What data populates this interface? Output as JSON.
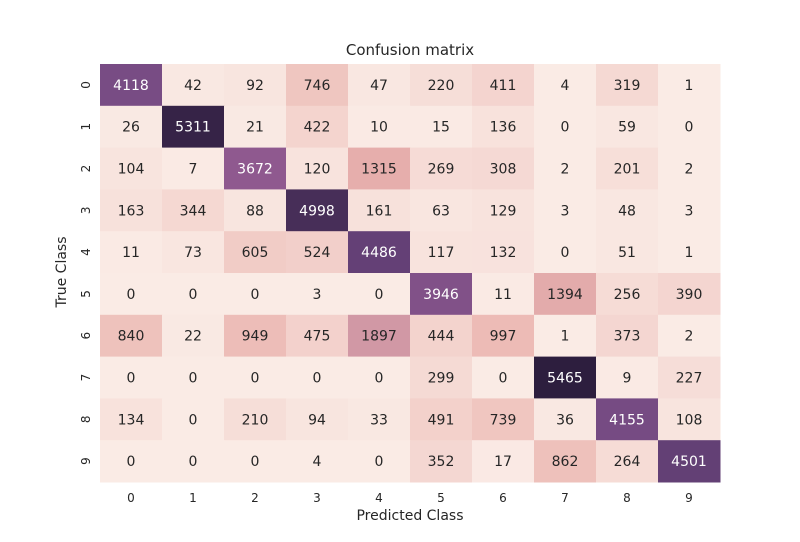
{
  "chart_data": {
    "type": "heatmap",
    "title": "Confusion matrix",
    "xlabel": "Predicted Class",
    "ylabel": "True Class",
    "x_categories": [
      "0",
      "1",
      "2",
      "3",
      "4",
      "5",
      "6",
      "7",
      "8",
      "9"
    ],
    "y_categories": [
      "0",
      "1",
      "2",
      "3",
      "4",
      "5",
      "6",
      "7",
      "8",
      "9"
    ],
    "values": [
      [
        4118,
        42,
        92,
        746,
        47,
        220,
        411,
        4,
        319,
        1
      ],
      [
        26,
        5311,
        21,
        422,
        10,
        15,
        136,
        0,
        59,
        0
      ],
      [
        104,
        7,
        3672,
        120,
        1315,
        269,
        308,
        2,
        201,
        2
      ],
      [
        163,
        344,
        88,
        4998,
        161,
        63,
        129,
        3,
        48,
        3
      ],
      [
        11,
        73,
        605,
        524,
        4486,
        117,
        132,
        0,
        51,
        1
      ],
      [
        0,
        0,
        0,
        3,
        0,
        3946,
        11,
        1394,
        256,
        390
      ],
      [
        840,
        22,
        949,
        475,
        1897,
        444,
        997,
        1,
        373,
        2
      ],
      [
        0,
        0,
        0,
        0,
        0,
        299,
        0,
        5465,
        9,
        227
      ],
      [
        134,
        0,
        210,
        94,
        33,
        491,
        739,
        36,
        4155,
        108
      ],
      [
        0,
        0,
        0,
        4,
        0,
        352,
        17,
        862,
        264,
        4501
      ]
    ],
    "colormap": [
      "#faebe5",
      "#eab2ad",
      "#9a5f94",
      "#6d467f",
      "#2d1e3e"
    ],
    "grid": false,
    "colorbar": false
  }
}
